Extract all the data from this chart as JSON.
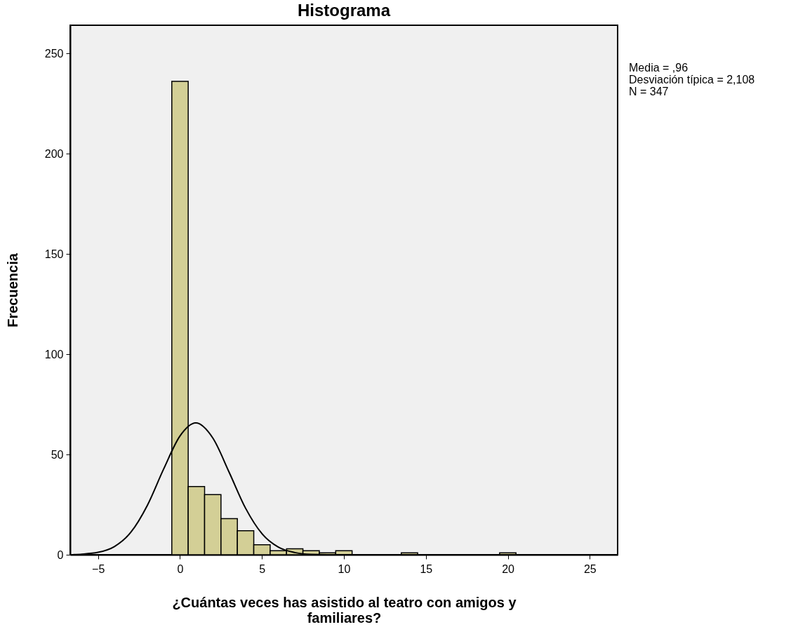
{
  "chart_data": {
    "type": "histogram",
    "title": "Histograma",
    "xlabel": "¿Cuántas veces has asistido al teatro con amigos y familiares?",
    "ylabel": "Frecuencia",
    "xlim": [
      -6.7,
      26.7
    ],
    "ylim": [
      0,
      264
    ],
    "xticks": [
      -5,
      0,
      5,
      10,
      15,
      20,
      25
    ],
    "yticks": [
      0,
      50,
      100,
      150,
      200,
      250
    ],
    "grid": false,
    "annotations": [
      "Media = ,96",
      "Desviación típica = 2,108",
      "N = 347"
    ],
    "series": [
      {
        "color": "#d3cf96",
        "bins": [
          -0.5,
          0.5,
          1.5,
          2.5,
          3.5,
          4.5,
          5.5,
          6.5,
          7.5,
          8.5,
          9.5,
          10.5,
          11.5,
          12.5,
          13.5,
          14.5,
          15.5,
          16.5,
          17.5,
          18.5,
          19.5,
          20.5
        ],
        "values": [
          236,
          34,
          30,
          18,
          12,
          5,
          2,
          3,
          2,
          1,
          2,
          0,
          0,
          0,
          1,
          0,
          0,
          0,
          0,
          0,
          1
        ]
      },
      {
        "type": "line",
        "color": "#000000",
        "x": [
          -6.5,
          -6,
          -5,
          -4,
          -3,
          -2,
          -1,
          0,
          0.96,
          2,
          3,
          4,
          5,
          6,
          7,
          8,
          10,
          15,
          26.7
        ],
        "values": [
          0.1,
          0.3,
          1.2,
          4.1,
          11.2,
          24.5,
          42.7,
          59.2,
          65.7,
          58.2,
          41.1,
          23.2,
          10.5,
          3.8,
          1.1,
          0.2,
          0,
          0,
          0
        ]
      }
    ]
  }
}
